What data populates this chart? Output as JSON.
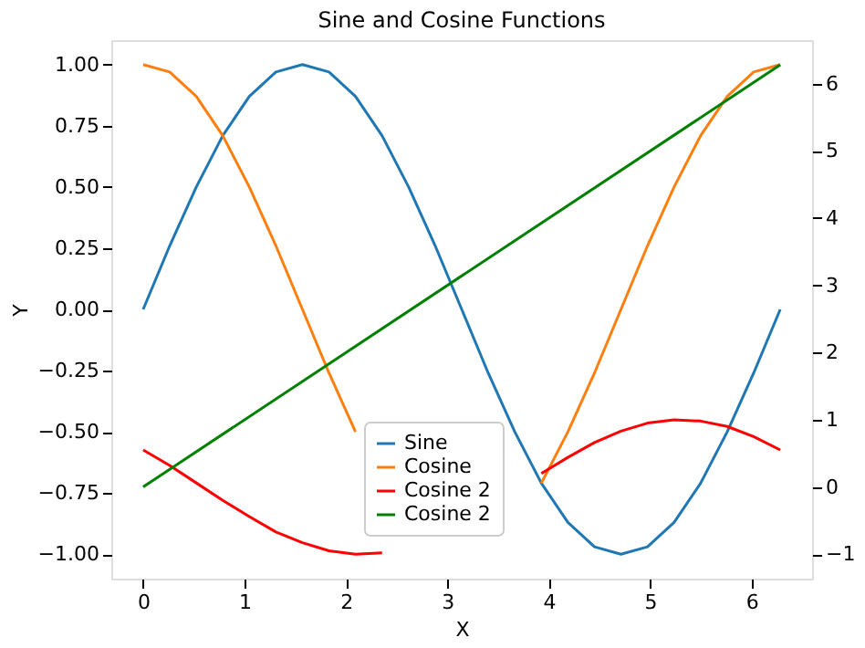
{
  "chart_data": {
    "type": "line",
    "title": "Sine and Cosine Functions",
    "xlabel": "X",
    "ylabel": "Y",
    "x": [
      0,
      0.262,
      0.524,
      0.785,
      1.047,
      1.309,
      1.571,
      1.833,
      2.094,
      2.356,
      2.618,
      2.88,
      3.142,
      3.403,
      3.665,
      3.927,
      4.189,
      4.451,
      4.712,
      4.974,
      5.236,
      5.498,
      5.76,
      6.021,
      6.283
    ],
    "series": [
      {
        "name": "Sine",
        "color": "#1f77b4",
        "values": [
          0,
          0.26,
          0.5,
          0.71,
          0.87,
          0.97,
          1,
          0.97,
          0.87,
          0.71,
          0.5,
          0.26,
          0,
          -0.26,
          -0.5,
          -0.71,
          -0.87,
          -0.97,
          -1,
          -0.97,
          -0.87,
          -0.71,
          -0.5,
          -0.26,
          0
        ]
      },
      {
        "name": "Cosine",
        "color": "#ff7f0e",
        "values": [
          1,
          0.97,
          0.87,
          0.71,
          0.5,
          0.26,
          0,
          -0.26,
          -0.5,
          null,
          null,
          null,
          null,
          null,
          null,
          -0.71,
          -0.5,
          -0.26,
          0,
          0.26,
          0.5,
          0.71,
          0.87,
          0.97,
          1
        ]
      },
      {
        "name": "Cosine 2",
        "color": "#ff0000",
        "axis": "y2",
        "values": [
          0.55,
          0.32,
          0.06,
          -0.2,
          -0.44,
          -0.67,
          -0.83,
          -0.95,
          -1,
          -0.98,
          null,
          null,
          null,
          null,
          null,
          0.2,
          0.44,
          0.66,
          0.83,
          0.95,
          1,
          0.98,
          0.9,
          0.75,
          0.55
        ]
      },
      {
        "name": "Cosine 2",
        "color": "#008000",
        "axis": "y2",
        "x": [
          0,
          6.283
        ],
        "values": [
          0,
          6.28
        ]
      }
    ],
    "xlim": [
      -0.314,
      6.597
    ],
    "ylim": [
      -1.1,
      1.1
    ],
    "y2lim": [
      -1.364,
      6.647
    ],
    "xticks": [
      0,
      1,
      2,
      3,
      4,
      5,
      6
    ],
    "yticks": [
      {
        "value": -1,
        "label": "−1.00"
      },
      {
        "value": -0.75,
        "label": "−0.75"
      },
      {
        "value": -0.5,
        "label": "−0.50"
      },
      {
        "value": -0.25,
        "label": "−0.25"
      },
      {
        "value": 0,
        "label": "0.00"
      },
      {
        "value": 0.25,
        "label": "0.25"
      },
      {
        "value": 0.5,
        "label": "0.50"
      },
      {
        "value": 0.75,
        "label": "0.75"
      },
      {
        "value": 1,
        "label": "1.00"
      }
    ],
    "y2ticks": [
      {
        "value": -1,
        "label": "−1"
      },
      0,
      1,
      2,
      3,
      4,
      5,
      6
    ],
    "legend": "bottom",
    "grid": false,
    "marker": "none",
    "line_style": "solid"
  }
}
